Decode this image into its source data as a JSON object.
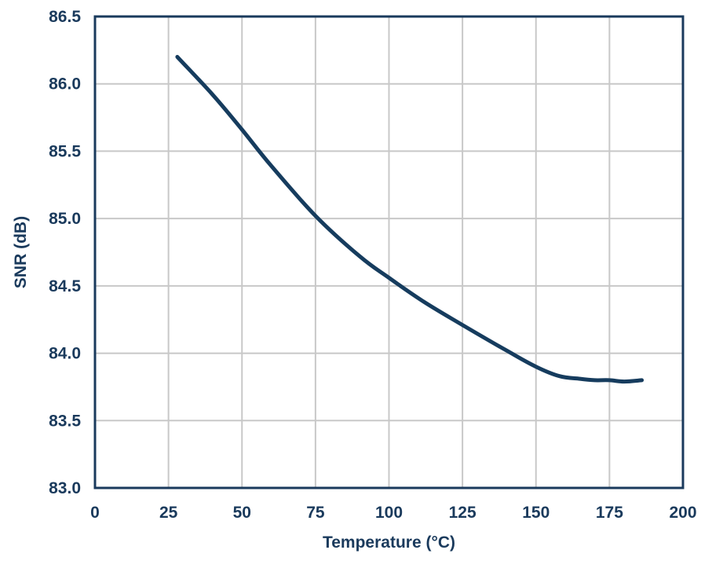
{
  "chart_data": {
    "type": "line",
    "title": "",
    "xlabel": "Temperature (°C)",
    "ylabel": "SNR (dB)",
    "xlim": [
      0,
      200
    ],
    "ylim": [
      83.0,
      86.5
    ],
    "xticks": [
      "0",
      "25",
      "50",
      "75",
      "100",
      "125",
      "150",
      "175",
      "200"
    ],
    "yticks": [
      "83.0",
      "83.5",
      "84.0",
      "84.5",
      "85.0",
      "85.5",
      "86.0",
      "86.5"
    ],
    "grid": true,
    "colors": {
      "axis": "#1a3a5c",
      "series": "#163c5e",
      "grid": "#c8c8c8"
    },
    "series": [
      {
        "x": [
          28,
          40,
          50,
          60,
          75,
          90,
          100,
          112,
          125,
          140,
          150,
          158,
          165,
          170,
          175,
          180,
          186
        ],
        "y": [
          86.2,
          85.92,
          85.66,
          85.39,
          85.02,
          84.72,
          84.56,
          84.38,
          84.21,
          84.02,
          83.9,
          83.83,
          83.81,
          83.8,
          83.8,
          83.79,
          83.8
        ]
      }
    ]
  }
}
